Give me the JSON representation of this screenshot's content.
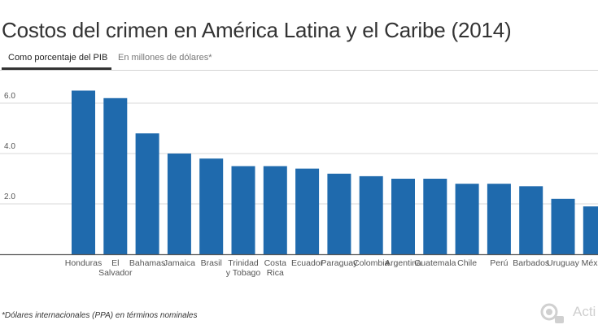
{
  "title": "Costos del crimen en América Latina y el Caribe (2014)",
  "tabs": [
    {
      "label": "Como porcentaje del PIB",
      "active": true
    },
    {
      "label": "En millones de dólares*",
      "active": false
    }
  ],
  "footnote": "*Dólares internacionales (PPA) en términos nominales",
  "watermark": {
    "text": "Acti",
    "icon": "pin-icon"
  },
  "colors": {
    "bar": "#1f6aad",
    "axis": "#555555",
    "grid": "#d8d8d8",
    "text": "#333333"
  },
  "chart_data": {
    "type": "bar",
    "categories": [
      [
        "Honduras"
      ],
      [
        "El",
        "Salvador"
      ],
      [
        "Bahamas"
      ],
      [
        "Jamaica"
      ],
      [
        "Brasil"
      ],
      [
        "Trinidad",
        "y Tobago"
      ],
      [
        "Costa",
        "Rica"
      ],
      [
        "Ecuador"
      ],
      [
        "Paraguay"
      ],
      [
        "Colombia"
      ],
      [
        "Argentina"
      ],
      [
        "Guatemala"
      ],
      [
        "Chile"
      ],
      [
        "Perú"
      ],
      [
        "Barbados"
      ],
      [
        "Uruguay"
      ],
      [
        "México"
      ]
    ],
    "values": [
      6.5,
      6.2,
      4.8,
      4.0,
      3.8,
      3.5,
      3.5,
      3.4,
      3.2,
      3.1,
      3.0,
      3.0,
      2.8,
      2.8,
      2.7,
      2.2,
      1.9
    ],
    "ylim": [
      0,
      7.0
    ],
    "yticks": [
      "2.0",
      "4.0",
      "6.0"
    ],
    "ytick_values": [
      2.0,
      4.0,
      6.0
    ],
    "grid": true
  }
}
